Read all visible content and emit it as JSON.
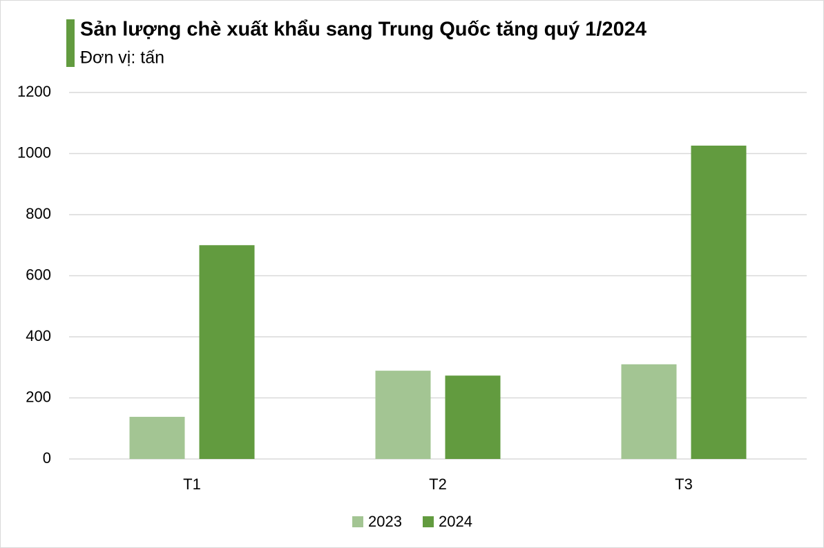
{
  "chart_data": {
    "type": "bar",
    "title": "Sản lượng chè xuất khẩu sang Trung Quốc tăng quý 1/2024",
    "subtitle": "Đơn vị: tấn",
    "categories": [
      "T1",
      "T2",
      "T3"
    ],
    "series": [
      {
        "name": "2023",
        "color": "#a3c593",
        "values": [
          138,
          289,
          310
        ]
      },
      {
        "name": "2024",
        "color": "#629b3f",
        "values": [
          700,
          273,
          1026
        ]
      }
    ],
    "ylim": [
      0,
      1200
    ],
    "yticks": [
      0,
      200,
      400,
      600,
      800,
      1000,
      1200
    ],
    "grid": true,
    "legend": "bottom"
  }
}
